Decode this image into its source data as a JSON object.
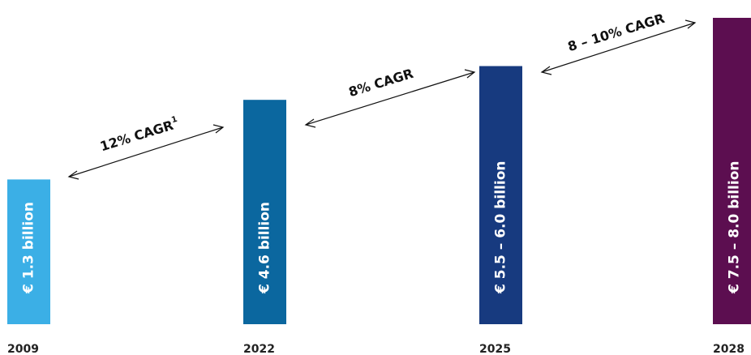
{
  "chart_data": {
    "type": "bar",
    "categories": [
      "2009",
      "2022",
      "2025",
      "2028"
    ],
    "values": [
      1.3,
      4.6,
      6.0,
      8.0
    ],
    "value_labels": [
      "€ 1.3 billion",
      "€ 4.6 billion",
      "€ 5.5 – 6.0 billion",
      "€ 7.5 – 8.0 billion"
    ],
    "colors": [
      "#3bafe6",
      "#0b679f",
      "#173a7f",
      "#5c0e50"
    ],
    "ylim": [
      -4.7,
      8.0
    ],
    "annotations": [
      {
        "text": "12% CAGR",
        "note": "1"
      },
      {
        "text": "8% CAGR"
      },
      {
        "text": "8 – 10% CAGR"
      }
    ]
  }
}
